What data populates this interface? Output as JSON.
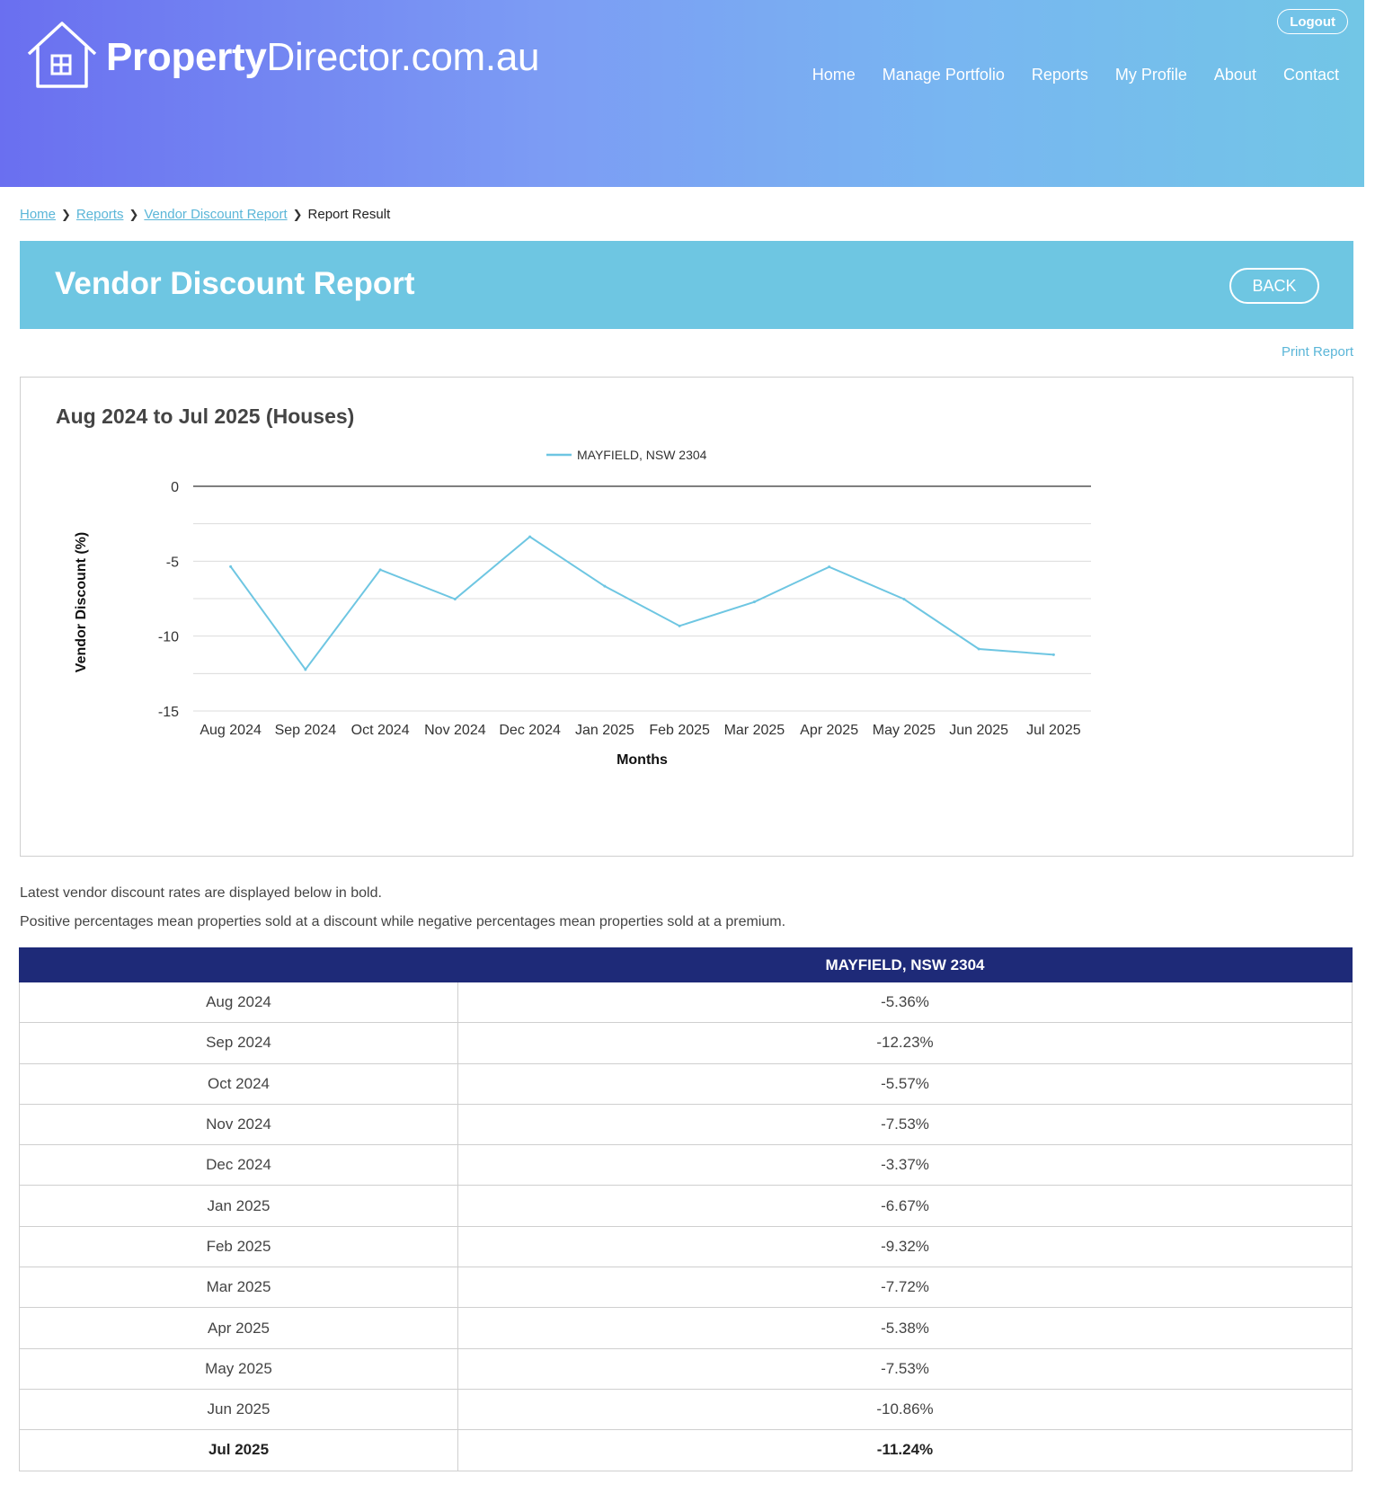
{
  "header": {
    "logo_bold": "Property",
    "logo_rest": "Director.com.au",
    "logout_label": "Logout",
    "nav": [
      "Home",
      "Manage Portfolio",
      "Reports",
      "My Profile",
      "About",
      "Contact"
    ]
  },
  "breadcrumb": {
    "items": [
      "Home",
      "Reports",
      "Vendor Discount Report"
    ],
    "current": "Report Result"
  },
  "banner": {
    "title": "Vendor Discount Report",
    "back_label": "BACK"
  },
  "print_label": "Print Report",
  "chart_data": {
    "type": "line",
    "title": "Aug 2024 to Jul 2025 (Houses)",
    "xlabel": "Months",
    "ylabel": "Vendor Discount (%)",
    "ylim": [
      -15,
      0
    ],
    "yticks": [
      0,
      -5,
      -10,
      -15
    ],
    "legend_position": "top-center",
    "grid": true,
    "categories": [
      "Aug 2024",
      "Sep 2024",
      "Oct 2024",
      "Nov 2024",
      "Dec 2024",
      "Jan 2025",
      "Feb 2025",
      "Mar 2025",
      "Apr 2025",
      "May 2025",
      "Jun 2025",
      "Jul 2025"
    ],
    "series": [
      {
        "name": "MAYFIELD, NSW 2304",
        "color": "#6ec6e2",
        "values": [
          -5.36,
          -12.23,
          -5.57,
          -7.53,
          -3.37,
          -6.67,
          -9.32,
          -7.72,
          -5.38,
          -7.53,
          -10.86,
          -11.24
        ]
      }
    ]
  },
  "notes": [
    "Latest vendor discount rates are displayed below in bold.",
    "Positive percentages mean properties sold at a discount while negative percentages mean properties sold at a premium."
  ],
  "table": {
    "headers": [
      "",
      "MAYFIELD, NSW 2304"
    ],
    "rows": [
      [
        "Aug 2024",
        "-5.36%"
      ],
      [
        "Sep 2024",
        "-12.23%"
      ],
      [
        "Oct 2024",
        "-5.57%"
      ],
      [
        "Nov 2024",
        "-7.53%"
      ],
      [
        "Dec 2024",
        "-3.37%"
      ],
      [
        "Jan 2025",
        "-6.67%"
      ],
      [
        "Feb 2025",
        "-9.32%"
      ],
      [
        "Mar 2025",
        "-7.72%"
      ],
      [
        "Apr 2025",
        "-5.38%"
      ],
      [
        "May 2025",
        "-7.53%"
      ],
      [
        "Jun 2025",
        "-10.86%"
      ],
      [
        "Jul 2025",
        "-11.24%"
      ]
    ]
  }
}
